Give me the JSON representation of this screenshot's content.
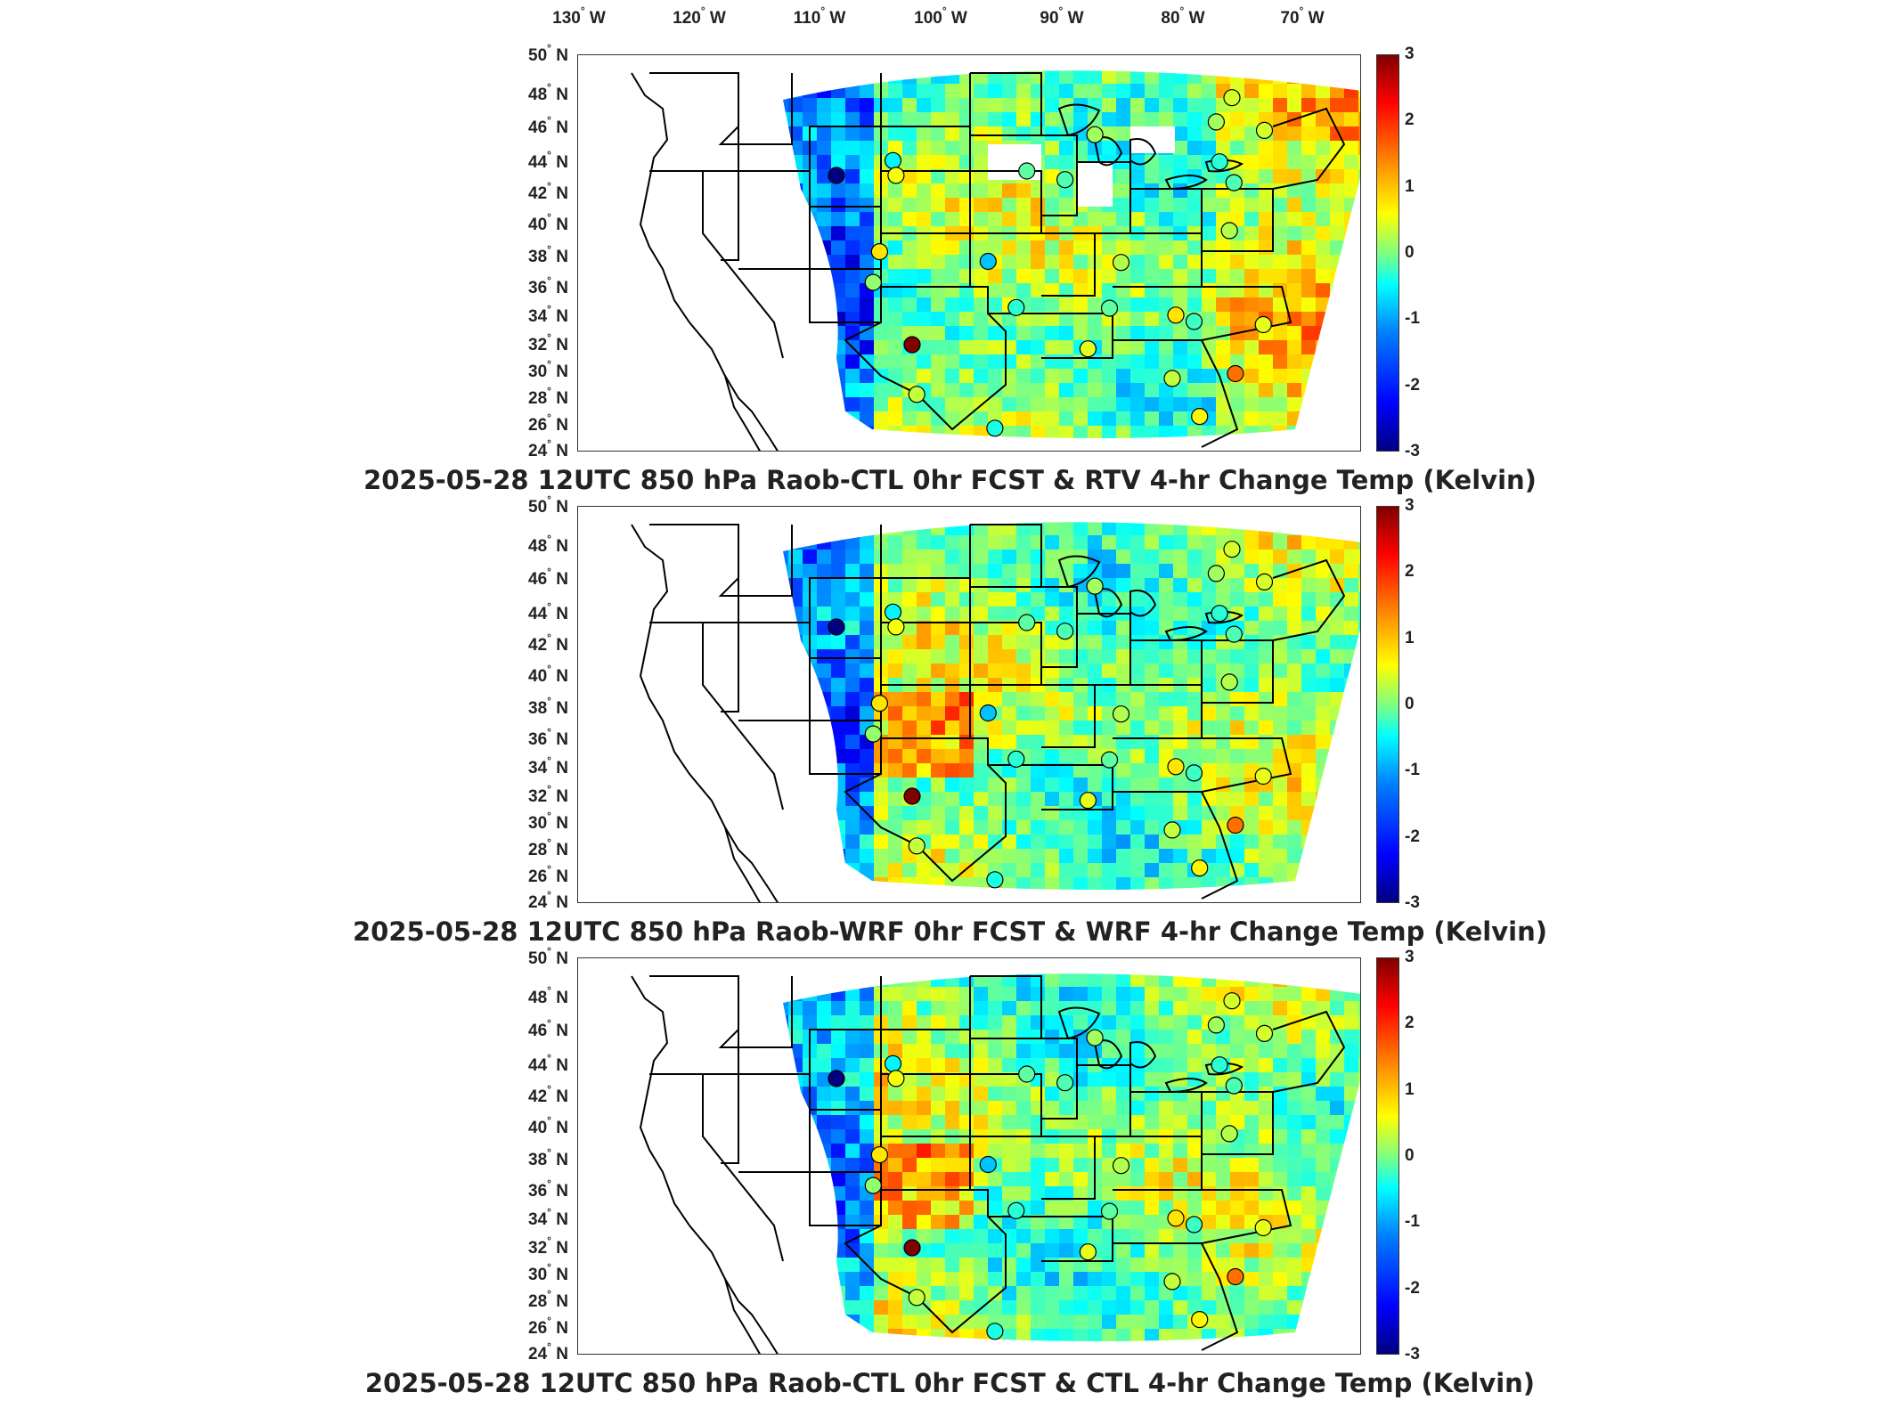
{
  "figure": {
    "panels": [
      {
        "title": "2025-05-28 12UTC 850 hPa Raob-CTL 0hr FCST & RTV 4-hr Change Temp (Kelvin)"
      },
      {
        "title": "2025-05-28 12UTC 850 hPa Raob-WRF 0hr FCST & WRF 4-hr Change Temp (Kelvin)"
      },
      {
        "title": "2025-05-28 12UTC 850 hPa Raob-CTL 0hr FCST & CTL 4-hr Change Temp (Kelvin)"
      }
    ],
    "longitude_labels": [
      "130",
      "120",
      "110",
      "100",
      "90",
      "80",
      "70"
    ],
    "longitude_suffix": "W",
    "latitude_labels": [
      "50",
      "48",
      "46",
      "44",
      "42",
      "40",
      "38",
      "36",
      "34",
      "32",
      "30",
      "28",
      "26",
      "24"
    ],
    "latitude_suffix": "N",
    "degree_symbol": "°",
    "colorbar": {
      "ticks": [
        "3",
        "2",
        "1",
        "0",
        "-1",
        "-2",
        "-3"
      ],
      "range": [
        -3,
        3
      ],
      "colormap": "jet",
      "colors": [
        "#00007f",
        "#0000ff",
        "#0080ff",
        "#00ffff",
        "#80ff80",
        "#ffff00",
        "#ff8000",
        "#ff0000",
        "#7f0000"
      ]
    },
    "station_markers_values": [
      0.3,
      0.6,
      -0.4,
      0.2,
      -0.8,
      -0.6,
      0.9,
      -0.2,
      0.4,
      1.6,
      -0.3,
      0.5,
      0.8,
      0.2,
      -0.5,
      0.7,
      0.6,
      -1.1,
      0.1,
      -0.2,
      0.4,
      -0.5,
      0.3,
      0.5,
      -0.3,
      0.9,
      -3.0,
      3.0
    ]
  }
}
